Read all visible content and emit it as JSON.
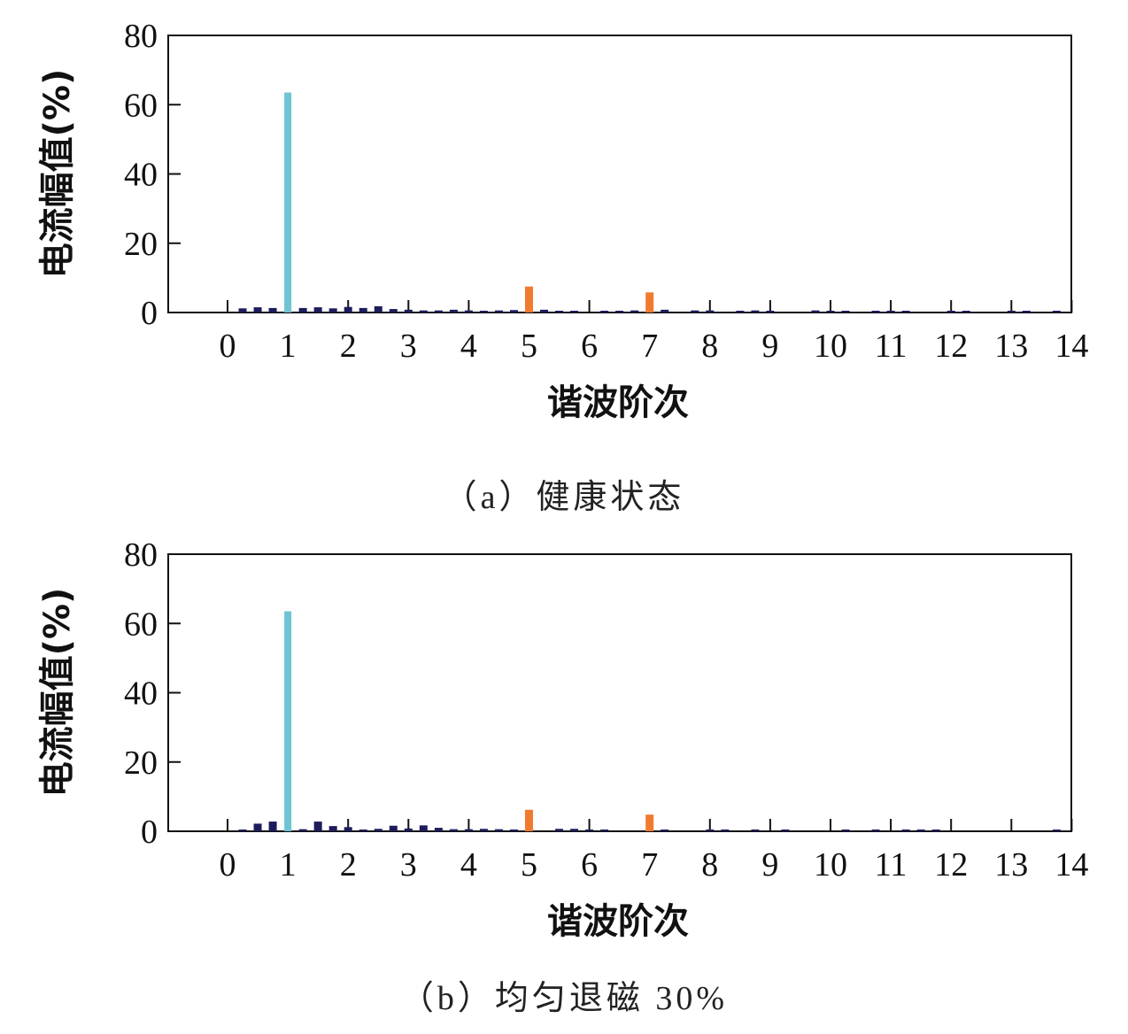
{
  "colors": {
    "fundamental": "#6ec4d2",
    "characteristic": "#f07a2d",
    "other": "#1c1c5c",
    "axis": "#111111"
  },
  "chart_data": [
    {
      "type": "bar",
      "caption": "（a）健康状态",
      "xlabel": "谐波阶次",
      "ylabel": "电流幅值(%)",
      "ylim": [
        0,
        80
      ],
      "yticks": [
        0,
        20,
        40,
        60,
        80
      ],
      "xticks": [
        0,
        1,
        2,
        3,
        4,
        5,
        6,
        7,
        8,
        9,
        10,
        11,
        12,
        13,
        14
      ],
      "grid": false,
      "bars": [
        {
          "x": 0.25,
          "y": 1.2
        },
        {
          "x": 0.5,
          "y": 1.5
        },
        {
          "x": 0.75,
          "y": 1.3
        },
        {
          "x": 1.0,
          "y": 63.5,
          "group": "fundamental"
        },
        {
          "x": 1.25,
          "y": 1.3
        },
        {
          "x": 1.5,
          "y": 1.5
        },
        {
          "x": 1.75,
          "y": 1.2
        },
        {
          "x": 2.0,
          "y": 1.6
        },
        {
          "x": 2.25,
          "y": 1.3
        },
        {
          "x": 2.5,
          "y": 1.8
        },
        {
          "x": 2.75,
          "y": 1.0
        },
        {
          "x": 3.0,
          "y": 0.8
        },
        {
          "x": 3.25,
          "y": 0.6
        },
        {
          "x": 3.5,
          "y": 0.6
        },
        {
          "x": 3.75,
          "y": 0.8
        },
        {
          "x": 4.0,
          "y": 0.6
        },
        {
          "x": 4.25,
          "y": 0.5
        },
        {
          "x": 4.5,
          "y": 0.6
        },
        {
          "x": 4.75,
          "y": 0.7
        },
        {
          "x": 5.0,
          "y": 7.5,
          "group": "characteristic"
        },
        {
          "x": 5.25,
          "y": 0.8
        },
        {
          "x": 5.5,
          "y": 0.5
        },
        {
          "x": 5.75,
          "y": 0.4
        },
        {
          "x": 6.25,
          "y": 0.5
        },
        {
          "x": 6.5,
          "y": 0.5
        },
        {
          "x": 6.75,
          "y": 0.6
        },
        {
          "x": 7.0,
          "y": 5.8,
          "group": "characteristic"
        },
        {
          "x": 7.25,
          "y": 0.8
        },
        {
          "x": 7.75,
          "y": 0.6
        },
        {
          "x": 8.0,
          "y": 0.6
        },
        {
          "x": 8.5,
          "y": 0.5
        },
        {
          "x": 8.75,
          "y": 0.6
        },
        {
          "x": 9.0,
          "y": 0.4
        },
        {
          "x": 9.75,
          "y": 0.6
        },
        {
          "x": 10.0,
          "y": 0.5
        },
        {
          "x": 10.25,
          "y": 0.4
        },
        {
          "x": 10.75,
          "y": 0.4
        },
        {
          "x": 11.0,
          "y": 0.3
        },
        {
          "x": 11.25,
          "y": 0.4
        },
        {
          "x": 12.0,
          "y": 0.3
        },
        {
          "x": 12.25,
          "y": 0.4
        },
        {
          "x": 13.0,
          "y": 0.3
        },
        {
          "x": 13.25,
          "y": 0.4
        },
        {
          "x": 13.75,
          "y": 0.3
        }
      ]
    },
    {
      "type": "bar",
      "caption": "（b）均匀退磁 30%",
      "xlabel": "谐波阶次",
      "ylabel": "电流幅值(%)",
      "ylim": [
        0,
        80
      ],
      "yticks": [
        0,
        20,
        40,
        60,
        80
      ],
      "xticks": [
        0,
        1,
        2,
        3,
        4,
        5,
        6,
        7,
        8,
        9,
        10,
        11,
        12,
        13,
        14
      ],
      "grid": false,
      "bars": [
        {
          "x": 0.25,
          "y": 0.5
        },
        {
          "x": 0.5,
          "y": 2.2
        },
        {
          "x": 0.75,
          "y": 2.8
        },
        {
          "x": 1.0,
          "y": 63.5,
          "group": "fundamental"
        },
        {
          "x": 1.25,
          "y": 0.6
        },
        {
          "x": 1.5,
          "y": 2.8
        },
        {
          "x": 1.75,
          "y": 1.5
        },
        {
          "x": 2.0,
          "y": 1.2
        },
        {
          "x": 2.25,
          "y": 0.5
        },
        {
          "x": 2.5,
          "y": 0.7
        },
        {
          "x": 2.75,
          "y": 1.6
        },
        {
          "x": 3.0,
          "y": 0.8
        },
        {
          "x": 3.25,
          "y": 1.7
        },
        {
          "x": 3.5,
          "y": 1.0
        },
        {
          "x": 3.75,
          "y": 0.6
        },
        {
          "x": 4.0,
          "y": 0.6
        },
        {
          "x": 4.25,
          "y": 0.7
        },
        {
          "x": 4.5,
          "y": 0.6
        },
        {
          "x": 4.75,
          "y": 0.4
        },
        {
          "x": 5.0,
          "y": 6.2,
          "group": "characteristic"
        },
        {
          "x": 5.5,
          "y": 0.7
        },
        {
          "x": 5.75,
          "y": 0.7
        },
        {
          "x": 6.0,
          "y": 0.4
        },
        {
          "x": 6.25,
          "y": 0.4
        },
        {
          "x": 7.0,
          "y": 4.8,
          "group": "characteristic"
        },
        {
          "x": 7.25,
          "y": 0.5
        },
        {
          "x": 8.0,
          "y": 0.4
        },
        {
          "x": 8.25,
          "y": 0.3
        },
        {
          "x": 8.75,
          "y": 0.4
        },
        {
          "x": 9.25,
          "y": 0.3
        },
        {
          "x": 10.25,
          "y": 0.3
        },
        {
          "x": 10.75,
          "y": 0.4
        },
        {
          "x": 11.25,
          "y": 0.3
        },
        {
          "x": 11.5,
          "y": 0.3
        },
        {
          "x": 11.75,
          "y": 0.3
        },
        {
          "x": 13.75,
          "y": 0.3
        }
      ]
    }
  ]
}
